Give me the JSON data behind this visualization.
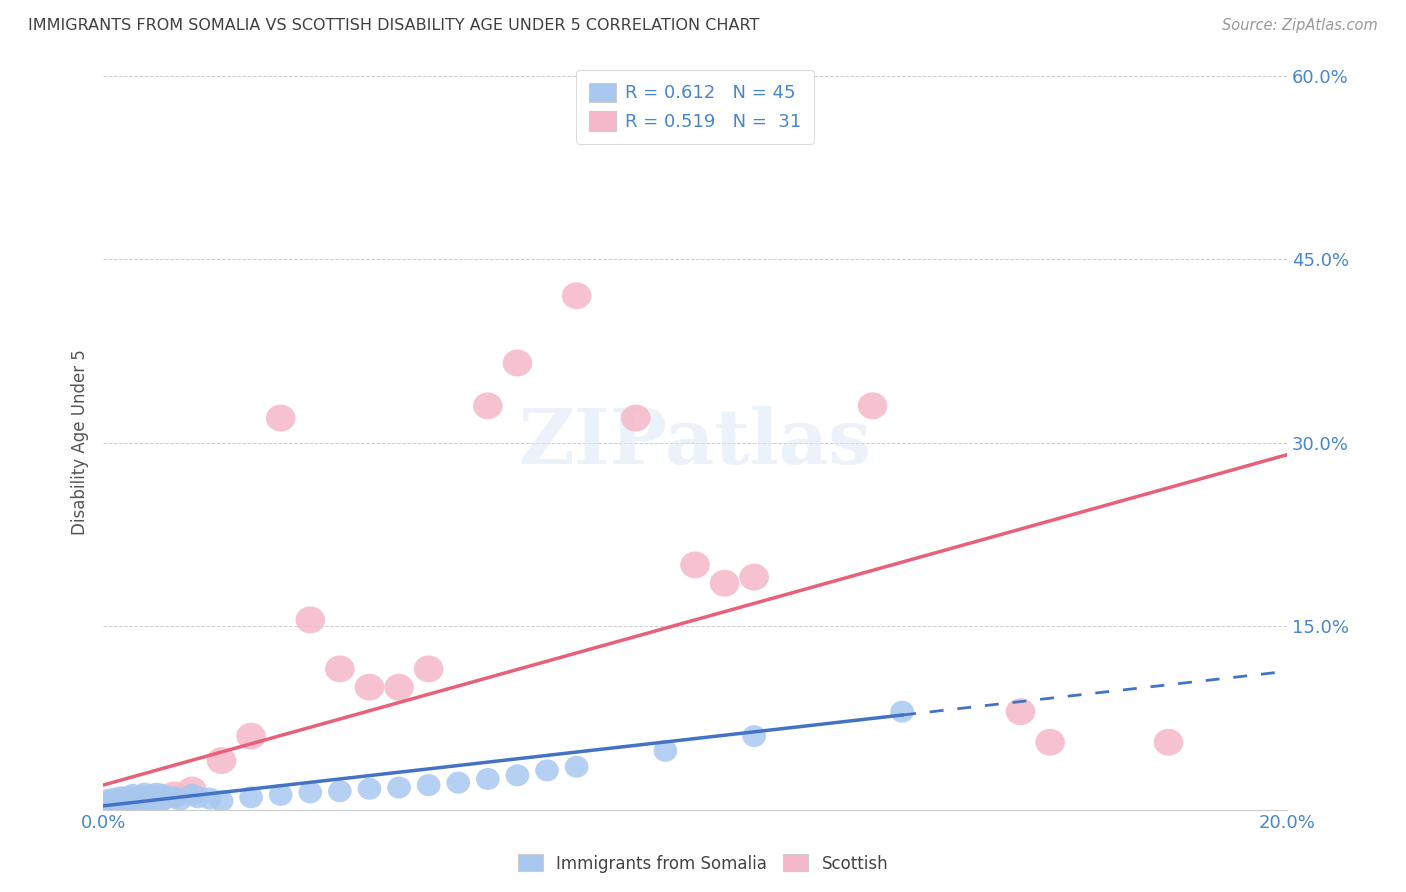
{
  "title": "IMMIGRANTS FROM SOMALIA VS SCOTTISH DISABILITY AGE UNDER 5 CORRELATION CHART",
  "source": "Source: ZipAtlas.com",
  "ylabel": "Disability Age Under 5",
  "xlim": [
    0.0,
    0.2
  ],
  "ylim": [
    0.0,
    0.6
  ],
  "xticks": [
    0.0,
    0.05,
    0.1,
    0.15,
    0.2
  ],
  "xticklabels": [
    "0.0%",
    "",
    "",
    "",
    "20.0%"
  ],
  "yticks": [
    0.0,
    0.15,
    0.3,
    0.45,
    0.6
  ],
  "yticklabels": [
    "",
    "15.0%",
    "30.0%",
    "45.0%",
    "60.0%"
  ],
  "blue_color": "#a8c8f0",
  "pink_color": "#f5b8c8",
  "trend_blue": "#4472c4",
  "trend_pink": "#e8607a",
  "title_color": "#404040",
  "axis_label_color": "#4a86c8",
  "blue_points_x": [
    0.001,
    0.001,
    0.002,
    0.002,
    0.003,
    0.003,
    0.003,
    0.004,
    0.004,
    0.005,
    0.005,
    0.005,
    0.006,
    0.006,
    0.007,
    0.007,
    0.007,
    0.008,
    0.008,
    0.009,
    0.009,
    0.01,
    0.01,
    0.011,
    0.012,
    0.013,
    0.015,
    0.016,
    0.018,
    0.02,
    0.025,
    0.03,
    0.035,
    0.04,
    0.045,
    0.05,
    0.055,
    0.06,
    0.065,
    0.07,
    0.075,
    0.08,
    0.095,
    0.11,
    0.135
  ],
  "blue_points_y": [
    0.003,
    0.008,
    0.004,
    0.009,
    0.005,
    0.007,
    0.01,
    0.006,
    0.01,
    0.004,
    0.008,
    0.012,
    0.006,
    0.01,
    0.007,
    0.01,
    0.013,
    0.008,
    0.012,
    0.009,
    0.013,
    0.008,
    0.012,
    0.01,
    0.01,
    0.008,
    0.012,
    0.01,
    0.009,
    0.007,
    0.01,
    0.012,
    0.014,
    0.015,
    0.017,
    0.018,
    0.02,
    0.022,
    0.025,
    0.028,
    0.032,
    0.035,
    0.048,
    0.06,
    0.08
  ],
  "pink_points_x": [
    0.001,
    0.001,
    0.002,
    0.003,
    0.004,
    0.005,
    0.006,
    0.007,
    0.008,
    0.01,
    0.012,
    0.015,
    0.02,
    0.025,
    0.03,
    0.035,
    0.04,
    0.045,
    0.05,
    0.055,
    0.065,
    0.07,
    0.08,
    0.09,
    0.1,
    0.105,
    0.11,
    0.13,
    0.155,
    0.16,
    0.18
  ],
  "pink_points_y": [
    0.003,
    0.005,
    0.004,
    0.006,
    0.005,
    0.008,
    0.007,
    0.009,
    0.007,
    0.01,
    0.012,
    0.016,
    0.04,
    0.06,
    0.32,
    0.155,
    0.115,
    0.1,
    0.1,
    0.115,
    0.33,
    0.365,
    0.42,
    0.32,
    0.2,
    0.185,
    0.19,
    0.33,
    0.08,
    0.055,
    0.055
  ]
}
